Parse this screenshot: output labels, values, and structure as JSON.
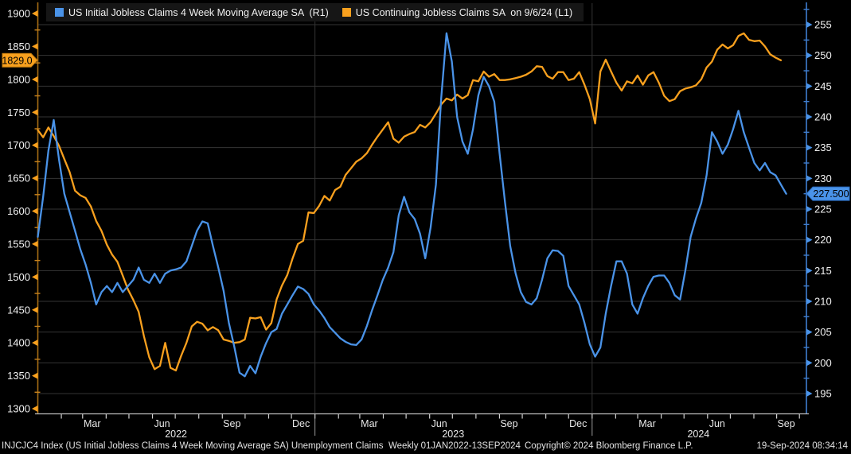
{
  "legend": {
    "items": [
      {
        "label": "US Initial Jobless Claims 4 Week Moving Average SA  (R1)",
        "color": "#4a93e8"
      },
      {
        "label": "US Continuing Jobless Claims SA  on 9/6/24 (L1)",
        "color": "#f8a01e"
      }
    ]
  },
  "statusbar": {
    "left": "INJCJC4 Index (US Initial Jobless Claims 4 Week Moving Average SA) Unemployment Claims  Weekly 01JAN2022-13SEP2024",
    "copyright": "Copyright© 2024 Bloomberg Finance L.P.",
    "timestamp": "19-Sep-2024 08:34:14"
  },
  "chart_data": {
    "type": "line",
    "x_range": {
      "start": "01JAN2022",
      "end": "13SEP2024",
      "frequency": "weekly"
    },
    "grid": true,
    "background": "#000000",
    "left_axis": {
      "series": "US Continuing Jobless Claims SA (L1)",
      "min": 1300,
      "max": 1900,
      "tick_step": 50,
      "ticks": [
        1900,
        1850,
        1800,
        1750,
        1700,
        1650,
        1600,
        1550,
        1500,
        1450,
        1400,
        1350,
        1300
      ],
      "color": "#f8a01e",
      "last_value": 1829.0,
      "last_value_label": "1829.0"
    },
    "right_axis": {
      "series": "US Initial Jobless Claims 4 Week Moving Average SA (R1)",
      "min": 195,
      "max": 255,
      "tick_step": 5,
      "ticks": [
        255,
        250,
        245,
        240,
        235,
        230,
        225,
        220,
        215,
        210,
        205,
        200,
        195
      ],
      "color": "#4a93e8",
      "last_value": 227.5,
      "last_value_label": "227.500"
    },
    "x_month_ticks": [
      {
        "day": 31
      },
      {
        "day": 59,
        "label": "Mar"
      },
      {
        "day": 90
      },
      {
        "day": 120
      },
      {
        "day": 151,
        "label": "Jun"
      },
      {
        "day": 181
      },
      {
        "day": 212
      },
      {
        "day": 243,
        "label": "Sep"
      },
      {
        "day": 273
      },
      {
        "day": 304
      },
      {
        "day": 334,
        "label": "Dec"
      },
      {
        "day": 365
      },
      {
        "day": 396
      },
      {
        "day": 424,
        "label": "Mar"
      },
      {
        "day": 455
      },
      {
        "day": 485
      },
      {
        "day": 516,
        "label": "Jun"
      },
      {
        "day": 546
      },
      {
        "day": 577
      },
      {
        "day": 608,
        "label": "Sep"
      },
      {
        "day": 638
      },
      {
        "day": 669
      },
      {
        "day": 699,
        "label": "Dec"
      },
      {
        "day": 730
      },
      {
        "day": 761
      },
      {
        "day": 790,
        "label": "Mar"
      },
      {
        "day": 821
      },
      {
        "day": 851
      },
      {
        "day": 882,
        "label": "Jun"
      },
      {
        "day": 912
      },
      {
        "day": 943
      },
      {
        "day": 973,
        "label": "Sep"
      },
      {
        "day": 1003
      }
    ],
    "x_year_dividers_days": [
      365,
      730
    ],
    "x_year_labels": [
      {
        "label": "2022",
        "center_day": 182
      },
      {
        "label": "2023",
        "center_day": 547
      },
      {
        "label": "2024",
        "center_day": 870
      }
    ],
    "series": [
      {
        "name": "US Initial Jobless Claims 4 Week Moving Average SA",
        "axis": "right",
        "color": "#4a93e8",
        "last_date": "9/13/24",
        "values": [
          220.5,
          227,
          234.5,
          239.5,
          233,
          227.5,
          224.5,
          221.5,
          218.5,
          216,
          213,
          209.5,
          211.5,
          212.5,
          211.5,
          213,
          211.5,
          212.5,
          213.5,
          215.5,
          213.5,
          213,
          214.5,
          213,
          214.5,
          215,
          215.2,
          215.5,
          216.5,
          219,
          221.5,
          223,
          222.7,
          219,
          215.5,
          211.7,
          206.5,
          202.7,
          198.4,
          197.8,
          199.5,
          198.3,
          201,
          203.2,
          205,
          205.5,
          208,
          209.5,
          211,
          212.4,
          212,
          211.2,
          209.5,
          208.5,
          207.3,
          205.8,
          204.9,
          204,
          203.4,
          203,
          202.9,
          203.8,
          206,
          208.6,
          211,
          213.5,
          215.5,
          218,
          224,
          227,
          224.5,
          223.4,
          221,
          217,
          222,
          229,
          243,
          253.6,
          249,
          240,
          236,
          234,
          238,
          243.5,
          246.5,
          245,
          242.5,
          234,
          226.3,
          219,
          214.6,
          211.5,
          209.9,
          209.5,
          210.5,
          213.5,
          217,
          218.3,
          218.2,
          217.4,
          212.5,
          211,
          209.5,
          206.5,
          203,
          201,
          202.5,
          208,
          212.5,
          216.5,
          216.5,
          214.5,
          209.5,
          208,
          210.5,
          212.5,
          214,
          214.2,
          214.2,
          213,
          211,
          210.3,
          215,
          220.5,
          223.5,
          226,
          230.5,
          237.5,
          236,
          234,
          235.5,
          238,
          241,
          237.5,
          235,
          232.5,
          231.3,
          232.5,
          231,
          230.5,
          229,
          227.5
        ]
      },
      {
        "name": "US Continuing Jobless Claims SA",
        "axis": "left",
        "color": "#f8a01e",
        "last_date": "9/6/24",
        "values": [
          1723,
          1712,
          1727,
          1714,
          1699,
          1679,
          1659,
          1631,
          1624,
          1620,
          1607,
          1585,
          1570,
          1549,
          1534,
          1523,
          1502,
          1481,
          1465,
          1447,
          1410,
          1378,
          1360,
          1365,
          1400,
          1362,
          1358,
          1380,
          1400,
          1425,
          1432,
          1429,
          1419,
          1424,
          1419,
          1405,
          1403,
          1400,
          1401,
          1405,
          1438,
          1437,
          1439,
          1420,
          1430,
          1466,
          1487,
          1503,
          1528,
          1550,
          1555,
          1598,
          1597,
          1608,
          1623,
          1616,
          1632,
          1637,
          1655,
          1665,
          1675,
          1680,
          1688,
          1701,
          1713,
          1724,
          1735,
          1710,
          1704,
          1713,
          1717,
          1720,
          1731,
          1727,
          1735,
          1748,
          1762,
          1771,
          1768,
          1777,
          1771,
          1776,
          1799,
          1797,
          1812,
          1804,
          1808,
          1799,
          1799,
          1800,
          1802,
          1804,
          1807,
          1812,
          1820,
          1819,
          1805,
          1801,
          1811,
          1811,
          1799,
          1801,
          1811,
          1792,
          1770,
          1733,
          1812,
          1830,
          1812,
          1795,
          1783,
          1797,
          1794,
          1806,
          1792,
          1806,
          1811,
          1795,
          1775,
          1767,
          1770,
          1782,
          1786,
          1788,
          1791,
          1800,
          1818,
          1827,
          1845,
          1853,
          1847,
          1852,
          1866,
          1870,
          1860,
          1858,
          1859,
          1850,
          1838,
          1833,
          1829
        ]
      }
    ]
  }
}
